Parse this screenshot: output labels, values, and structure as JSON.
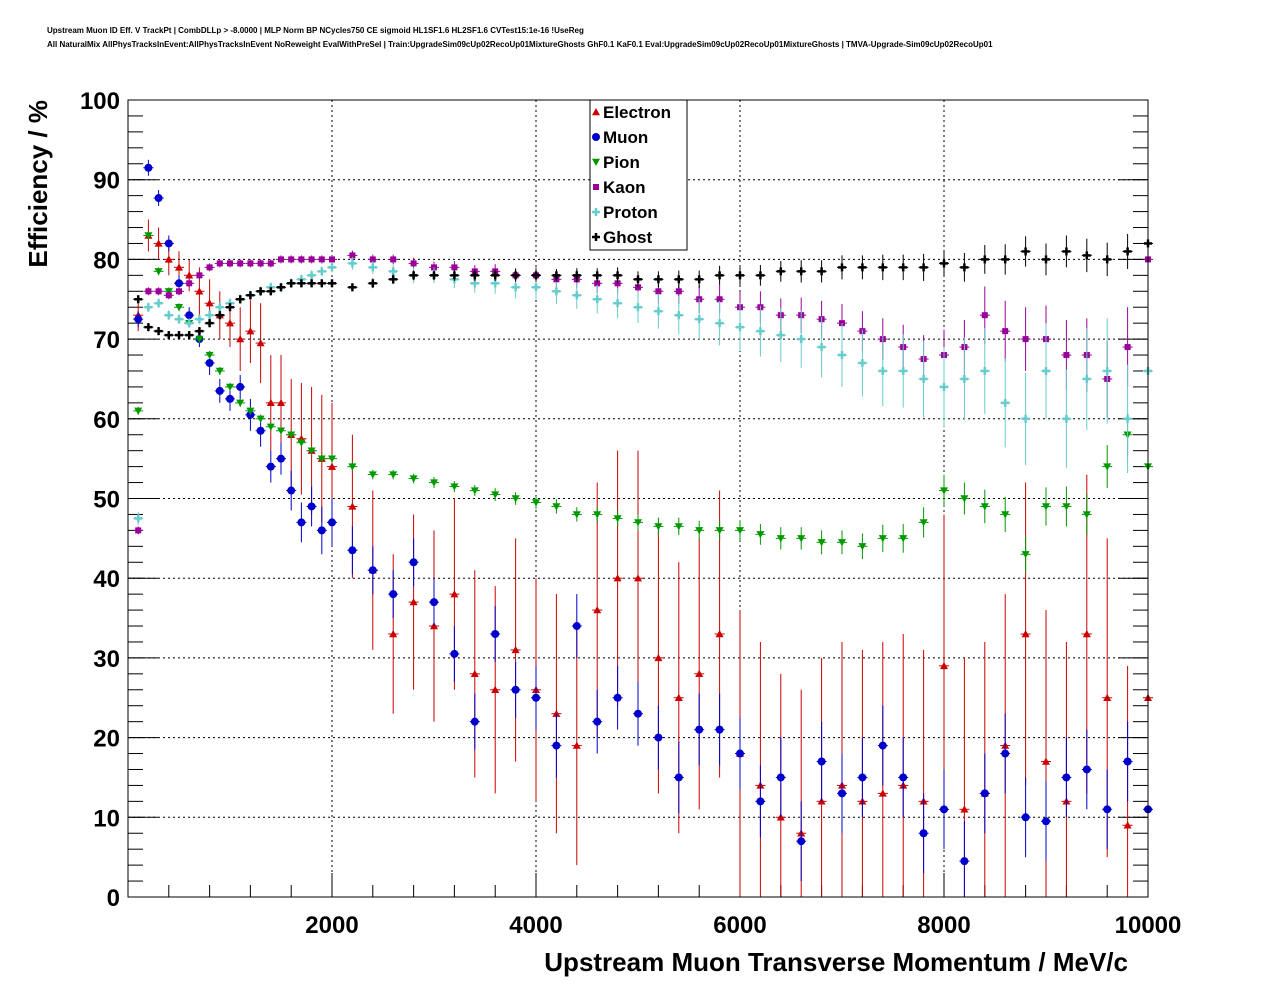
{
  "header": {
    "line1": "Upstream Muon ID Eff. V TrackPt | CombDLLp > -8.0000 | MLP Norm BP NCycles750 CE sigmoid HL1SF1.6 HL2SF1.6 CVTest15:1e-16 !UseReg",
    "line2": "All NaturalMix AllPhysTracksInEvent:AllPhysTracksInEvent NoReweight EvalWithPreSel | Train:UpgradeSim09cUp02RecoUp01MixtureGhosts GhF0.1 KaF0.1 Eval:UpgradeSim09cUp02RecoUp01MixtureGhosts | TMVA-Upgrade-Sim09cUp02RecoUp01"
  },
  "chart_data": {
    "type": "scatter",
    "title": "",
    "xlabel": "Upstream Muon Transverse Momentum / MeV/c",
    "ylabel": "Efficiency / %",
    "xlim": [
      0,
      10000
    ],
    "ylim": [
      0,
      100
    ],
    "xticks": [
      2000,
      4000,
      6000,
      8000,
      10000
    ],
    "yticks": [
      0,
      10,
      20,
      30,
      40,
      50,
      60,
      70,
      80,
      90,
      100
    ],
    "grid": true,
    "legend_position": "top-center",
    "series": [
      {
        "name": "Electron",
        "color": "#cc0000",
        "marker": "triangle-up",
        "x": [
          100,
          200,
          300,
          400,
          500,
          600,
          700,
          800,
          900,
          1000,
          1100,
          1200,
          1300,
          1400,
          1500,
          1600,
          1700,
          1800,
          1900,
          2000,
          2200,
          2400,
          2600,
          2800,
          3000,
          3200,
          3400,
          3600,
          3800,
          4000,
          4200,
          4400,
          4600,
          4800,
          5000,
          5200,
          5400,
          5600,
          5800,
          6000,
          6200,
          6400,
          6600,
          6800,
          7000,
          7200,
          7400,
          7600,
          7800,
          8000,
          8200,
          8400,
          8600,
          8800,
          9000,
          9200,
          9400,
          9600,
          9800,
          10000
        ],
        "y": [
          73,
          83,
          82,
          80,
          79,
          78,
          76,
          74.5,
          73,
          72,
          70,
          71,
          69.5,
          62,
          62,
          58,
          57.5,
          56,
          55,
          54,
          49,
          41,
          33,
          37,
          34,
          38,
          28,
          26,
          31,
          26,
          23,
          19,
          36,
          40,
          40,
          30,
          25,
          28,
          33,
          18,
          14,
          10,
          8,
          12,
          14,
          12,
          13,
          14,
          12,
          29,
          11,
          13,
          19,
          33,
          17,
          12,
          33,
          25,
          9,
          25
        ],
        "err": [
          2,
          2,
          2,
          2,
          2,
          2,
          3,
          3,
          3,
          3,
          4,
          4,
          5,
          6,
          6,
          7,
          7,
          8,
          8,
          8,
          9,
          10,
          10,
          11,
          12,
          12,
          13,
          13,
          14,
          14,
          15,
          15,
          16,
          16,
          16,
          17,
          17,
          17,
          18,
          18,
          18,
          18,
          18,
          18,
          18,
          19,
          19,
          19,
          19,
          19,
          19,
          19,
          19,
          19,
          19,
          20,
          20,
          20,
          20,
          20
        ]
      },
      {
        "name": "Muon",
        "color": "#0000cc",
        "marker": "circle",
        "x": [
          100,
          200,
          300,
          400,
          500,
          600,
          700,
          800,
          900,
          1000,
          1100,
          1200,
          1300,
          1400,
          1500,
          1600,
          1700,
          1800,
          1900,
          2000,
          2200,
          2400,
          2600,
          2800,
          3000,
          3200,
          3400,
          3600,
          3800,
          4000,
          4200,
          4400,
          4600,
          4800,
          5000,
          5200,
          5400,
          5600,
          5800,
          6000,
          6200,
          6400,
          6600,
          6800,
          7000,
          7200,
          7400,
          7600,
          7800,
          8000,
          8200,
          8400,
          8600,
          8800,
          9000,
          9200,
          9400,
          9600,
          9800,
          10000
        ],
        "y": [
          72.5,
          91.5,
          87.7,
          82,
          77,
          73,
          70,
          67,
          63.5,
          62.5,
          64,
          60.5,
          58.5,
          54,
          55,
          51,
          47,
          49,
          46,
          47,
          43.5,
          41,
          38,
          42,
          37,
          30.5,
          22,
          33,
          26,
          25,
          19,
          34,
          22,
          25,
          23,
          20,
          15,
          21,
          21,
          18,
          12,
          15,
          7,
          17,
          13,
          15,
          19,
          15,
          8,
          11,
          4.5,
          13,
          18,
          10,
          9.5,
          15,
          16,
          11,
          17,
          11
        ],
        "err": [
          1,
          1,
          1,
          1,
          1,
          1,
          1,
          1.5,
          1.5,
          1.5,
          1.5,
          2,
          2,
          2,
          2,
          2.5,
          2.5,
          2.5,
          3,
          3,
          3,
          3,
          3,
          3,
          3,
          3.5,
          3.5,
          3.5,
          3.5,
          4,
          4,
          4,
          4,
          4,
          4,
          4,
          4.5,
          4.5,
          4.5,
          4.5,
          4.5,
          5,
          5,
          5,
          5,
          5,
          5,
          5,
          5,
          5,
          5,
          5,
          5,
          5,
          5,
          5,
          5,
          5,
          5,
          5
        ]
      },
      {
        "name": "Pion",
        "color": "#009900",
        "marker": "triangle-down",
        "x": [
          100,
          200,
          300,
          400,
          500,
          600,
          700,
          800,
          900,
          1000,
          1100,
          1200,
          1300,
          1400,
          1500,
          1600,
          1700,
          1800,
          1900,
          2000,
          2200,
          2400,
          2600,
          2800,
          3000,
          3200,
          3400,
          3600,
          3800,
          4000,
          4200,
          4400,
          4600,
          4800,
          5000,
          5200,
          5400,
          5600,
          5800,
          6000,
          6200,
          6400,
          6600,
          6800,
          7000,
          7200,
          7400,
          7600,
          7800,
          8000,
          8200,
          8400,
          8600,
          8800,
          9000,
          9200,
          9400,
          9600,
          9800,
          10000
        ],
        "y": [
          61,
          83,
          78.5,
          76,
          74,
          72,
          70,
          68,
          66,
          64,
          62,
          61,
          60,
          59,
          58.5,
          58,
          57,
          56,
          55,
          55,
          54,
          53,
          53,
          52.5,
          52,
          51.5,
          51,
          50.5,
          50,
          49.5,
          49,
          48,
          48,
          47.5,
          47,
          46.5,
          46.5,
          46,
          46,
          46,
          45.5,
          45,
          45,
          44.5,
          44.5,
          44,
          45,
          45,
          47,
          51,
          50,
          49,
          48,
          43,
          49,
          49,
          48,
          54,
          58,
          54
        ],
        "err": [
          0.5,
          0.5,
          0.5,
          0.5,
          0.5,
          0.5,
          0.5,
          0.5,
          0.5,
          0.5,
          0.5,
          0.5,
          0.5,
          0.5,
          0.5,
          0.5,
          0.5,
          0.5,
          0.5,
          0.5,
          0.6,
          0.6,
          0.6,
          0.6,
          0.7,
          0.7,
          0.7,
          0.8,
          0.8,
          0.8,
          0.9,
          0.9,
          1,
          1,
          1,
          1.1,
          1.1,
          1.2,
          1.2,
          1.3,
          1.3,
          1.4,
          1.4,
          1.5,
          1.5,
          1.6,
          1.7,
          1.8,
          1.9,
          2,
          2,
          2.1,
          2.2,
          2.3,
          2.4,
          2.5,
          2.6,
          2.7,
          2.8,
          2.9
        ]
      },
      {
        "name": "Kaon",
        "color": "#990099",
        "marker": "square",
        "x": [
          100,
          200,
          300,
          400,
          500,
          600,
          700,
          800,
          900,
          1000,
          1100,
          1200,
          1300,
          1400,
          1500,
          1600,
          1700,
          1800,
          1900,
          2000,
          2200,
          2400,
          2600,
          2800,
          3000,
          3200,
          3400,
          3600,
          3800,
          4000,
          4200,
          4400,
          4600,
          4800,
          5000,
          5200,
          5400,
          5600,
          5800,
          6000,
          6200,
          6400,
          6600,
          6800,
          7000,
          7200,
          7400,
          7600,
          7800,
          8000,
          8200,
          8400,
          8600,
          8800,
          9000,
          9200,
          9400,
          9600,
          9800,
          10000
        ],
        "y": [
          46,
          76,
          76,
          75.5,
          76,
          77,
          78,
          79,
          79.5,
          79.5,
          79.5,
          79.5,
          79.5,
          79.5,
          80,
          80,
          80,
          80,
          80,
          80,
          80.5,
          80,
          80,
          79.5,
          79,
          79,
          78.5,
          78.5,
          78,
          78,
          77.5,
          77.5,
          77,
          77,
          76.5,
          76,
          76,
          75,
          75,
          74,
          74,
          73,
          73,
          72.5,
          72,
          71,
          70,
          69,
          67.5,
          68,
          69,
          73,
          71,
          70,
          70,
          68,
          68,
          65,
          69,
          80
        ],
        "err": [
          0.5,
          0.5,
          0.5,
          0.5,
          0.5,
          0.5,
          0.5,
          0.5,
          0.5,
          0.5,
          0.5,
          0.5,
          0.5,
          0.5,
          0.5,
          0.5,
          0.5,
          0.5,
          0.5,
          0.5,
          0.6,
          0.6,
          0.6,
          0.7,
          0.7,
          0.8,
          0.8,
          0.9,
          0.9,
          1,
          1,
          1.1,
          1.2,
          1.3,
          1.4,
          1.5,
          1.6,
          1.7,
          1.8,
          1.9,
          2,
          2.1,
          2.2,
          2.3,
          2.4,
          2.5,
          2.6,
          2.8,
          3,
          3.2,
          3.4,
          3.6,
          3.8,
          4,
          4.2,
          4.4,
          4.6,
          4.8,
          5,
          5.2
        ]
      },
      {
        "name": "Proton",
        "color": "#66cccc",
        "marker": "cross",
        "x": [
          100,
          200,
          300,
          400,
          500,
          600,
          700,
          800,
          900,
          1000,
          1100,
          1200,
          1300,
          1400,
          1500,
          1600,
          1700,
          1800,
          1900,
          2000,
          2200,
          2400,
          2600,
          2800,
          3000,
          3200,
          3400,
          3600,
          3800,
          4000,
          4200,
          4400,
          4600,
          4800,
          5000,
          5200,
          5400,
          5600,
          5800,
          6000,
          6200,
          6400,
          6600,
          6800,
          7000,
          7200,
          7400,
          7600,
          7800,
          8000,
          8200,
          8400,
          8600,
          8800,
          9000,
          9200,
          9400,
          9600,
          9800,
          10000
        ],
        "y": [
          47.5,
          74,
          74.5,
          73,
          72.5,
          72,
          72.5,
          73,
          74,
          74.5,
          75,
          75.5,
          76,
          76.5,
          76.5,
          77,
          77.5,
          78,
          78.5,
          79,
          79.5,
          79,
          78.5,
          78,
          78,
          77.5,
          77,
          77,
          76.5,
          76.5,
          76,
          75.5,
          75,
          74.5,
          74,
          73.5,
          73,
          72.5,
          72,
          71.5,
          71,
          70.5,
          70,
          69,
          68,
          67,
          66,
          66,
          65,
          64,
          65,
          66,
          62,
          60,
          66,
          60,
          65,
          66,
          60,
          66
        ],
        "err": [
          0.8,
          0.6,
          0.6,
          0.6,
          0.6,
          0.6,
          0.6,
          0.6,
          0.6,
          0.6,
          0.6,
          0.6,
          0.6,
          0.6,
          0.6,
          0.6,
          0.6,
          0.6,
          0.6,
          0.6,
          0.8,
          0.8,
          0.9,
          1,
          1,
          1.1,
          1.2,
          1.3,
          1.4,
          1.5,
          1.6,
          1.7,
          1.8,
          1.9,
          2,
          2.2,
          2.4,
          2.6,
          2.8,
          3,
          3.2,
          3.4,
          3.6,
          3.8,
          4,
          4.2,
          4.4,
          4.6,
          4.8,
          5,
          5.2,
          5.4,
          5.6,
          5.8,
          6,
          6.2,
          6.4,
          6.6,
          6.8,
          7
        ]
      },
      {
        "name": "Ghost",
        "color": "#000000",
        "marker": "cross",
        "x": [
          100,
          200,
          300,
          400,
          500,
          600,
          700,
          800,
          900,
          1000,
          1100,
          1200,
          1300,
          1400,
          1500,
          1600,
          1700,
          1800,
          1900,
          2000,
          2200,
          2400,
          2600,
          2800,
          3000,
          3200,
          3400,
          3600,
          3800,
          4000,
          4200,
          4400,
          4600,
          4800,
          5000,
          5200,
          5400,
          5600,
          5800,
          6000,
          6200,
          6400,
          6600,
          6800,
          7000,
          7200,
          7400,
          7600,
          7800,
          8000,
          8200,
          8400,
          8600,
          8800,
          9000,
          9200,
          9400,
          9600,
          9800,
          10000
        ],
        "y": [
          75,
          71.5,
          71,
          70.5,
          70.5,
          70.5,
          71,
          72,
          73,
          74,
          75,
          75.5,
          76,
          76,
          76.5,
          77,
          77,
          77,
          77,
          77,
          76.5,
          77,
          77.5,
          78,
          78,
          78,
          78,
          78,
          78,
          78,
          78,
          78,
          78,
          78,
          77.5,
          77.5,
          77.5,
          77.5,
          78,
          78,
          78,
          78.5,
          78.5,
          78.5,
          79,
          79,
          79,
          79,
          79,
          79.5,
          79,
          80,
          80,
          81,
          80,
          81,
          80.5,
          80,
          81,
          82
        ],
        "err": [
          0.5,
          0.5,
          0.5,
          0.5,
          0.5,
          0.5,
          0.5,
          0.5,
          0.5,
          0.5,
          0.5,
          0.5,
          0.5,
          0.5,
          0.5,
          0.5,
          0.5,
          0.5,
          0.5,
          0.5,
          0.5,
          0.6,
          0.6,
          0.6,
          0.6,
          0.7,
          0.7,
          0.7,
          0.8,
          0.8,
          0.8,
          0.9,
          0.9,
          1,
          1,
          1,
          1.1,
          1.1,
          1.2,
          1.2,
          1.3,
          1.3,
          1.4,
          1.4,
          1.5,
          1.5,
          1.6,
          1.6,
          1.7,
          1.7,
          1.8,
          1.8,
          1.9,
          1.9,
          2,
          2,
          2.1,
          2.1,
          2.2,
          2.2
        ]
      }
    ]
  }
}
